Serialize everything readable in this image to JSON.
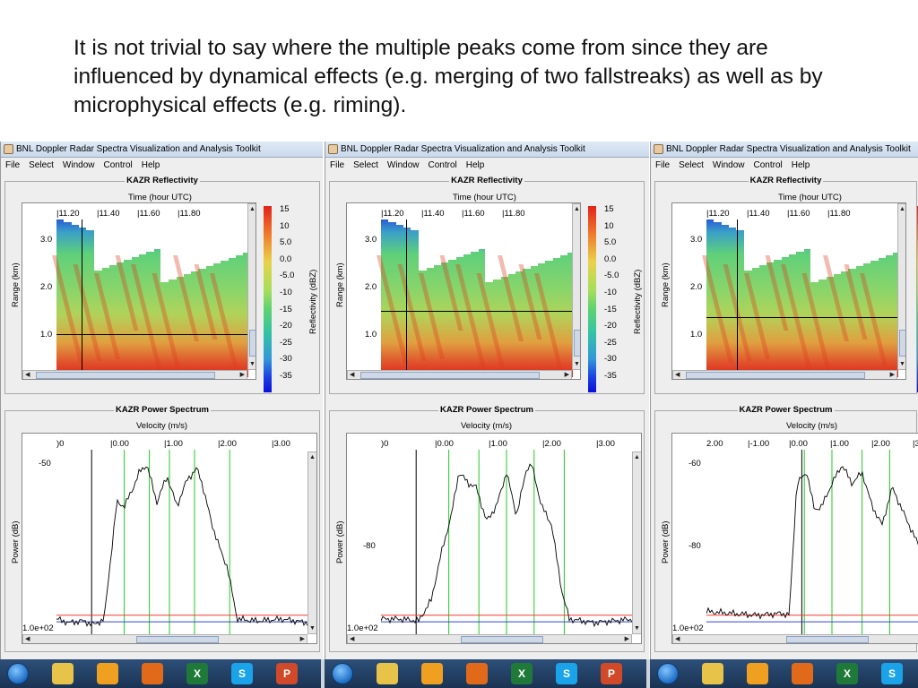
{
  "caption": "It is not trivial to say where the multiple peaks come from since they are influenced by dynamical effects (e.g. merging of two fallstreaks) as well as by microphysical effects (e.g. riming).",
  "window": {
    "title": "BNL Doppler Radar Spectra Visualization and Analysis Toolkit",
    "menu": [
      "File",
      "Select",
      "Window",
      "Control",
      "Help"
    ]
  },
  "reflectivity": {
    "title": "KAZR Reflectivity",
    "xlabel": "Time (hour UTC)",
    "ylabel": "Range (km)",
    "xticks": [
      "11.20",
      "11.40",
      "11.60",
      "11.80"
    ],
    "yticks": [
      "3.0",
      "2.0",
      "1.0"
    ],
    "colorbar_label": "Reflectivity (dBZ)",
    "colorbar_ticks": [
      "15",
      "10",
      "5.0",
      "0.0",
      "-5.0",
      "-10",
      "-15",
      "-20",
      "-25",
      "-30",
      "-35"
    ]
  },
  "spectrum": {
    "title": "KAZR Power Spectrum",
    "xlabel": "Velocity (m/s)",
    "ylabel": "Power (dB)",
    "panels": [
      {
        "xticks": [
          ")0",
          "0.00",
          "1.00",
          "2.00",
          "3.00"
        ],
        "ytick_top": "-50",
        "ytick_bottom": "1.0e+02"
      },
      {
        "xticks": [
          ")0",
          "0.00",
          "1.00",
          "2.00",
          "3.00"
        ],
        "ytick_mid": "-80",
        "ytick_bottom": "1.0e+02"
      },
      {
        "xticks": [
          "2.00",
          "-1.00",
          "0.00",
          "1.00",
          "2.00",
          "3"
        ],
        "ytick_top": "-60",
        "ytick_mid": "-80",
        "ytick_bottom": "1.0e+02"
      }
    ]
  },
  "taskbar": {
    "icons": [
      "windows-start",
      "file-explorer",
      "media-player",
      "firefox",
      "excel",
      "skype",
      "powerpoint"
    ],
    "labels": {
      "excel": "X",
      "skype": "S",
      "powerpoint": "P"
    }
  },
  "colors": {
    "spectrum_line": "#000000",
    "green_marker": "#22cc22",
    "red_line": "#ff3333",
    "blue_line": "#3344cc"
  }
}
